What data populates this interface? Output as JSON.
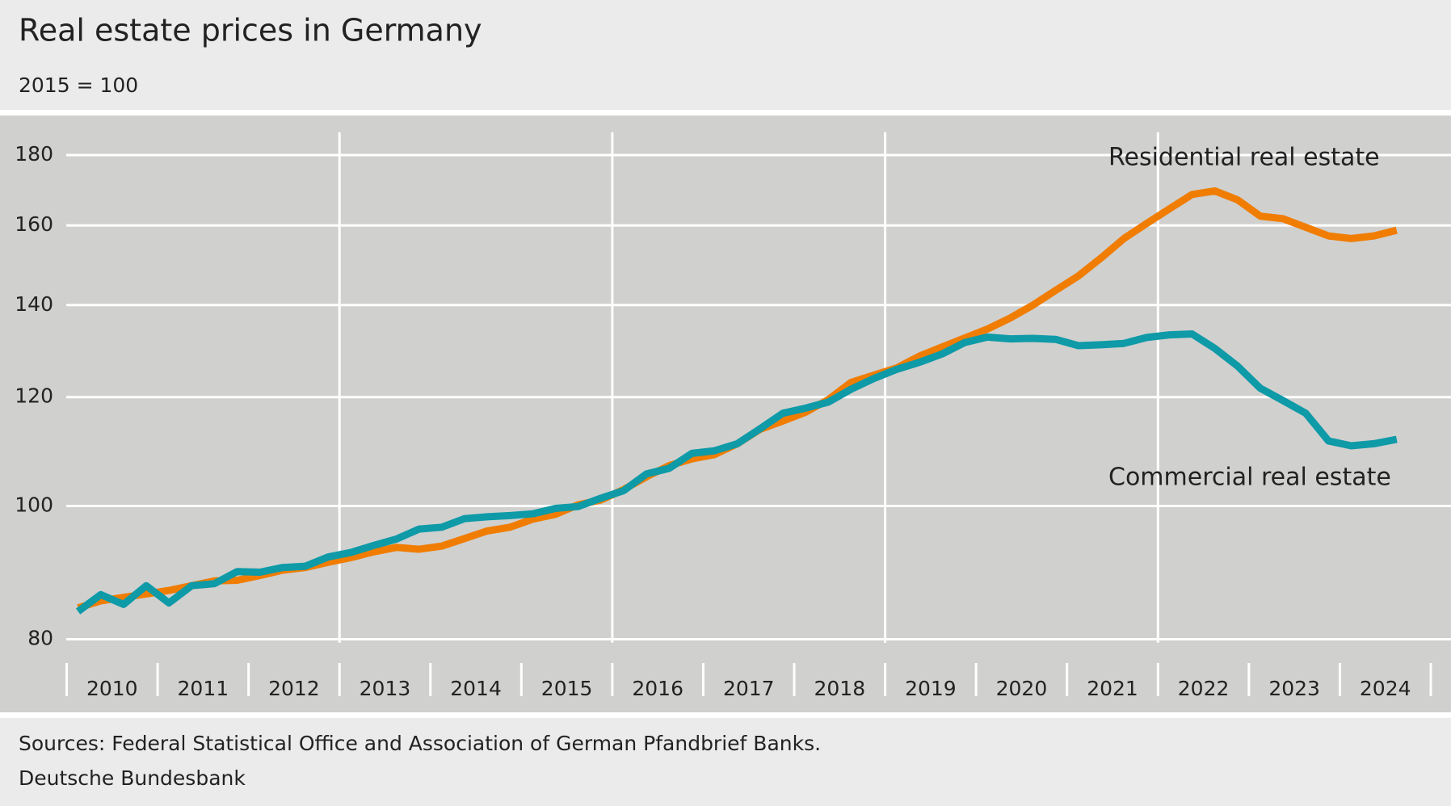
{
  "chart_data": {
    "type": "line",
    "title": "Real estate prices in Germany",
    "subtitle": "2015 = 100",
    "sources": "Sources: Federal Statistical Office and Association of German Pfandbrief Banks.",
    "publisher": "Deutsche Bundesbank",
    "log_scale": true,
    "grid": true,
    "x": [
      2010.125,
      2010.375,
      2010.625,
      2010.875,
      2011.125,
      2011.375,
      2011.625,
      2011.875,
      2012.125,
      2012.375,
      2012.625,
      2012.875,
      2013.125,
      2013.375,
      2013.625,
      2013.875,
      2014.125,
      2014.375,
      2014.625,
      2014.875,
      2015.125,
      2015.375,
      2015.625,
      2015.875,
      2016.125,
      2016.375,
      2016.625,
      2016.875,
      2017.125,
      2017.375,
      2017.625,
      2017.875,
      2018.125,
      2018.375,
      2018.625,
      2018.875,
      2019.125,
      2019.375,
      2019.625,
      2019.875,
      2020.125,
      2020.375,
      2020.625,
      2020.875,
      2021.125,
      2021.375,
      2021.625,
      2021.875,
      2022.125,
      2022.375,
      2022.625,
      2022.875,
      2023.125,
      2023.375,
      2023.625,
      2023.875,
      2024.125,
      2024.375,
      2024.625
    ],
    "series": [
      {
        "name": "Residential real estate",
        "color": "#f07d00",
        "values": [
          84.3,
          85.3,
          85.8,
          86.3,
          86.8,
          87.5,
          88.2,
          88.3,
          89.0,
          89.8,
          90.2,
          91.0,
          91.7,
          92.6,
          93.3,
          93.0,
          93.5,
          94.7,
          95.9,
          96.5,
          97.8,
          98.6,
          100.2,
          101.0,
          102.8,
          105.0,
          107.0,
          108.2,
          109.0,
          111.0,
          113.7,
          115.3,
          117.0,
          119.5,
          123.0,
          124.5,
          126.0,
          128.5,
          130.5,
          132.5,
          134.5,
          137.0,
          140.0,
          143.5,
          147.0,
          151.5,
          156.5,
          160.5,
          164.5,
          168.5,
          169.5,
          167.0,
          162.5,
          161.8,
          159.5,
          157.2,
          156.5,
          157.2,
          158.7
        ]
      },
      {
        "name": "Commercial real estate",
        "color": "#0e9aa7",
        "values": [
          83.8,
          86.2,
          84.8,
          87.5,
          85.0,
          87.5,
          87.8,
          89.6,
          89.5,
          90.2,
          90.4,
          91.8,
          92.5,
          93.6,
          94.6,
          96.2,
          96.5,
          97.9,
          98.2,
          98.4,
          98.7,
          99.6,
          99.9,
          101.3,
          102.6,
          105.5,
          106.5,
          109.2,
          109.7,
          111.0,
          113.8,
          116.8,
          117.8,
          119.0,
          121.6,
          123.8,
          125.7,
          127.2,
          129.0,
          131.5,
          132.7,
          132.3,
          132.4,
          132.2,
          130.8,
          131.0,
          131.3,
          132.6,
          133.2,
          133.4,
          130.2,
          126.4,
          121.8,
          119.3,
          116.8,
          111.5,
          110.6,
          111.0,
          111.8
        ]
      }
    ],
    "xlim": [
      2010,
      2025
    ],
    "xticks": [
      {
        "value": 2010.5,
        "label": "2010"
      },
      {
        "value": 2011.5,
        "label": "2011"
      },
      {
        "value": 2012.5,
        "label": "2012"
      },
      {
        "value": 2013.5,
        "label": "2013"
      },
      {
        "value": 2014.5,
        "label": "2014"
      },
      {
        "value": 2015.5,
        "label": "2015"
      },
      {
        "value": 2016.5,
        "label": "2016"
      },
      {
        "value": 2017.5,
        "label": "2017"
      },
      {
        "value": 2018.5,
        "label": "2018"
      },
      {
        "value": 2019.5,
        "label": "2019"
      },
      {
        "value": 2020.5,
        "label": "2020"
      },
      {
        "value": 2021.5,
        "label": "2021"
      },
      {
        "value": 2022.5,
        "label": "2022"
      },
      {
        "value": 2023.5,
        "label": "2023"
      },
      {
        "value": 2024.5,
        "label": "2024"
      }
    ],
    "xminorticks": [
      2010,
      2011,
      2012,
      2013,
      2014,
      2015,
      2016,
      2017,
      2018,
      2019,
      2020,
      2021,
      2022,
      2023,
      2024,
      2025
    ],
    "xgrid": [
      2013,
      2016,
      2019,
      2022
    ],
    "ylim": [
      77,
      187
    ],
    "yticks": [
      80,
      100,
      120,
      140,
      160,
      180
    ]
  }
}
